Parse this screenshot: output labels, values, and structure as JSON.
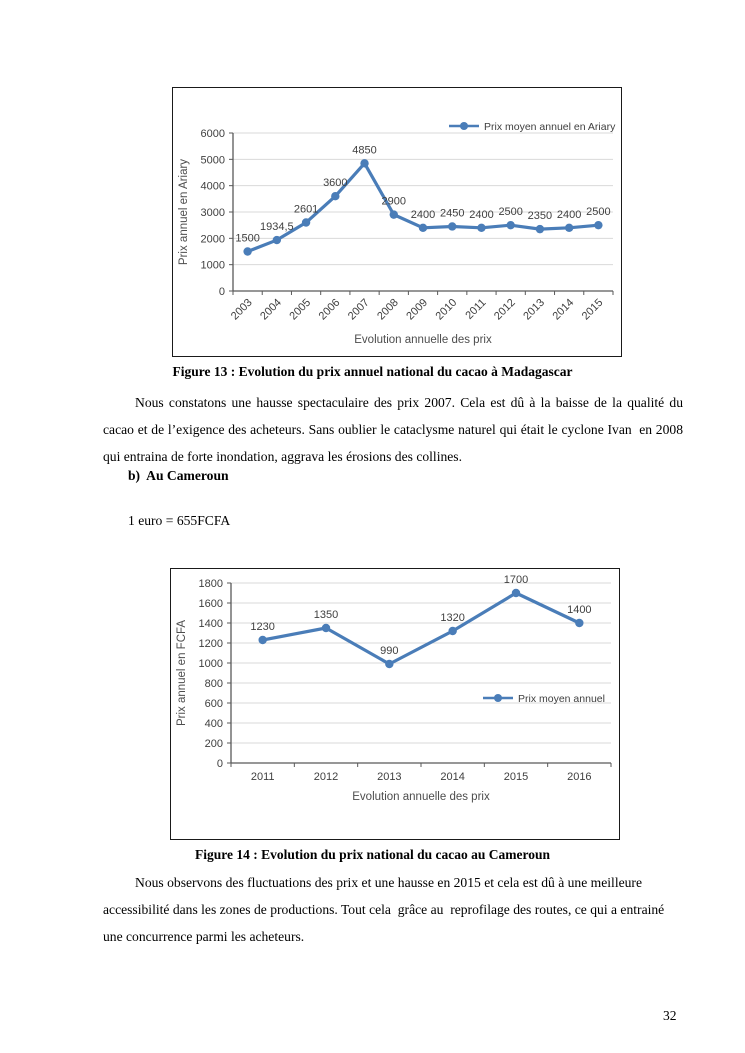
{
  "document": {
    "figure13_caption": "Figure 13 : Evolution du prix annuel national du cacao à Madagascar",
    "paragraph1": "Nous constatons une hausse spectaculaire des prix 2007. Cela est dû à la baisse de la qualité du cacao et de l’exigence des acheteurs. Sans oublier le cataclysme naturel qui était le cyclone Ivan  en 2008 qui entraina de forte inondation, aggrava les érosions des collines.",
    "section_heading": "b)  Au Cameroun",
    "conversion_note": "1 euro = 655FCFA",
    "figure14_caption": "Figure 14 : Evolution du prix national du cacao au Cameroun",
    "paragraph2": "Nous observons des fluctuations des prix et une hausse en 2015 et cela est dû à une meilleure accessibilité dans les zones de productions. Tout cela  grâce au  reprofilage des routes, ce qui a entrainé une concurrence parmi les acheteurs.",
    "page_number": "32"
  },
  "chart_data": [
    {
      "type": "line",
      "categories": [
        "2003",
        "2004",
        "2005",
        "2006",
        "2007",
        "2008",
        "2009",
        "2010",
        "2011",
        "2012",
        "2013",
        "2014",
        "2015"
      ],
      "values": [
        1500,
        1934.5,
        2601,
        3600,
        4850,
        2900,
        2400,
        2450,
        2400,
        2500,
        2350,
        2400,
        2500
      ],
      "data_labels": [
        "1500",
        "1934,5",
        "2601",
        "3600",
        "4850",
        "2900",
        "2400",
        "2450",
        "2400",
        "2500",
        "2350",
        "2400",
        "2500"
      ],
      "title": "",
      "xlabel": "Evolution annuelle des prix",
      "ylabel": "Prix annuel en Ariary",
      "ylim": [
        0,
        6000
      ],
      "ytick_step": 1000,
      "legend": "Prix moyen annuel en Ariary",
      "legend_position": "top-right",
      "grid": true,
      "line_color": "#4a7db8",
      "x_labels_rotated": true
    },
    {
      "type": "line",
      "categories": [
        "2011",
        "2012",
        "2013",
        "2014",
        "2015",
        "2016"
      ],
      "values": [
        1230,
        1350,
        990,
        1320,
        1700,
        1400
      ],
      "data_labels": [
        "1230",
        "1350",
        "990",
        "1320",
        "1700",
        "1400"
      ],
      "title": "",
      "xlabel": "Evolution annuelle des prix",
      "ylabel": "Prix annuel en FCFA",
      "ylim": [
        0,
        1800
      ],
      "ytick_step": 200,
      "legend": "Prix moyen annuel",
      "legend_position": "middle-right",
      "grid": true,
      "line_color": "#4a7db8",
      "x_labels_rotated": false
    }
  ]
}
